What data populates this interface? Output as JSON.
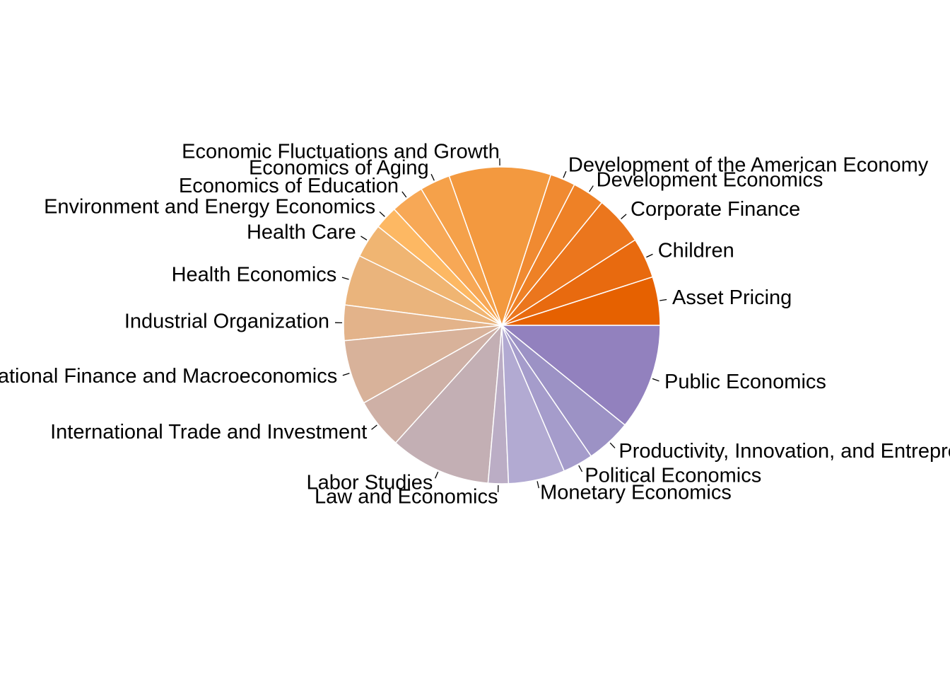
{
  "chart_data": {
    "type": "pie",
    "title": "",
    "start": "3 o'clock, counterclockwise",
    "slices": [
      {
        "label": "Asset Pricing",
        "value": 4.8,
        "color": "#E66100"
      },
      {
        "label": "Children",
        "value": 4.0,
        "color": "#E86A0F"
      },
      {
        "label": "Corporate Finance",
        "value": 4.9,
        "color": "#EB761D"
      },
      {
        "label": "Development Economics",
        "value": 3.2,
        "color": "#EE8126"
      },
      {
        "label": "Development of the American Economy",
        "value": 2.5,
        "color": "#F08A31"
      },
      {
        "label": "Economic Fluctuations and Growth",
        "value": 10.1,
        "color": "#F3993F"
      },
      {
        "label": "Economics of Aging",
        "value": 3.0,
        "color": "#F5A14A"
      },
      {
        "label": "Economics of Education",
        "value": 3.3,
        "color": "#F7A856"
      },
      {
        "label": "Environment and Energy Economics",
        "value": 2.3,
        "color": "#FDB863"
      },
      {
        "label": "Health Care",
        "value": 3.4,
        "color": "#F0B572"
      },
      {
        "label": "Health Economics",
        "value": 5.0,
        "color": "#EAB47C"
      },
      {
        "label": "Industrial Organization",
        "value": 3.5,
        "color": "#E3B38A"
      },
      {
        "label": "International Finance and Macroeconomics",
        "value": 6.4,
        "color": "#D8B29A"
      },
      {
        "label": "International Trade and Investment",
        "value": 5.0,
        "color": "#CEB0A6"
      },
      {
        "label": "Labor Studies",
        "value": 10.0,
        "color": "#C3AFB4"
      },
      {
        "label": "Law and Economics",
        "value": 2.0,
        "color": "#BBADC5"
      },
      {
        "label": "Monetary Economics",
        "value": 5.6,
        "color": "#B2AAD2"
      },
      {
        "label": "Political Economics",
        "value": 3.0,
        "color": "#A59CCB"
      },
      {
        "label": "Productivity, Innovation, and Entrepreneurship",
        "value": 4.5,
        "color": "#9C92C5"
      },
      {
        "label": "Public Economics",
        "value": 10.5,
        "color": "#9281BE"
      }
    ]
  }
}
